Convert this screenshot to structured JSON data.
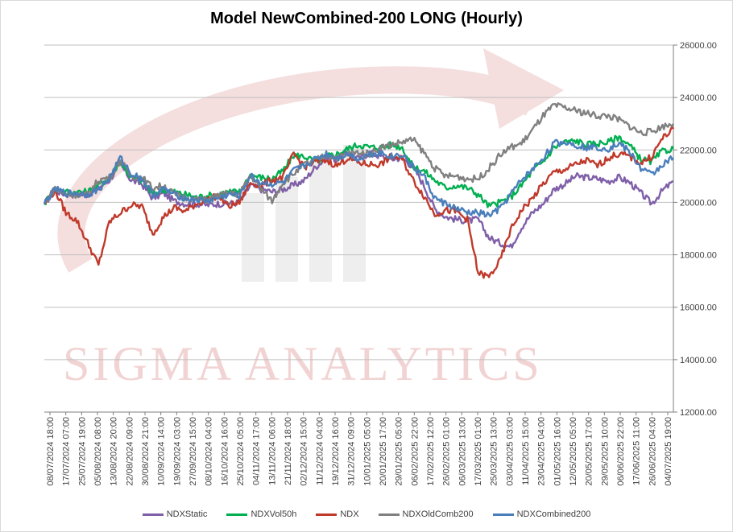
{
  "chart_data": {
    "type": "line",
    "title": "Model NewCombined-200 LONG (Hourly)",
    "watermark": "SIGMA ANALYTICS",
    "xlabel": "",
    "ylabel": "",
    "ylim": [
      12000,
      26000
    ],
    "y_ticks": [
      "12000.00",
      "14000.00",
      "16000.00",
      "18000.00",
      "20000.00",
      "22000.00",
      "24000.00",
      "26000.00"
    ],
    "y_axis_side": "right",
    "grid": true,
    "legend_position": "bottom",
    "x_tick_labels": [
      "08/07/2024 18:00",
      "17/07/2024 07:00",
      "25/07/2024 19:00",
      "05/08/2024 08:00",
      "13/08/2024 20:00",
      "22/08/2024 09:00",
      "30/08/2024 21:00",
      "10/09/2024 14:00",
      "19/09/2024 03:00",
      "27/09/2024 15:00",
      "08/10/2024 04:00",
      "16/10/2024 16:00",
      "25/10/2024 05:00",
      "04/11/2024 17:00",
      "13/11/2024 06:00",
      "21/11/2024 18:00",
      "02/12/2024 15:00",
      "11/12/2024 04:00",
      "19/12/2024 16:00",
      "31/12/2024 09:00",
      "10/01/2025 05:00",
      "20/01/2025 17:00",
      "29/01/2025 05:00",
      "06/02/2025 22:00",
      "17/02/2025 12:00",
      "26/02/2025 01:00",
      "06/03/2025 13:00",
      "17/03/2025 01:00",
      "25/03/2025 13:00",
      "03/04/2025 03:00",
      "11/04/2025 15:00",
      "23/04/2025 04:00",
      "01/05/2025 16:00",
      "12/05/2025 05:00",
      "20/05/2025 17:00",
      "29/05/2025 10:00",
      "06/06/2025 22:00",
      "17/06/2025 11:00",
      "26/06/2025 04:00",
      "04/07/2025 19:00"
    ],
    "series": [
      {
        "name": "NDXStatic",
        "color": "#7f5fa8",
        "values": [
          19950,
          20450,
          20300,
          20300,
          20300,
          20550,
          20850,
          21450,
          20850,
          20700,
          20150,
          20350,
          20050,
          19950,
          19950,
          19900,
          19950,
          19950,
          20000,
          20650,
          20500,
          20400,
          20500,
          20650,
          20850,
          21350,
          21700,
          21650,
          21900,
          21650,
          21900,
          21750,
          21650,
          21700,
          21350,
          20650,
          19750,
          19450,
          19350,
          19300,
          19350,
          18650,
          18450,
          18300,
          19050,
          19600,
          19950,
          20500,
          20700,
          21000,
          20950,
          20900,
          20800,
          20950,
          20750,
          20350,
          19950,
          20450,
          20800
        ]
      },
      {
        "name": "NDXVol50h",
        "color": "#00b050",
        "values": [
          19950,
          20550,
          20400,
          20400,
          20400,
          20650,
          20950,
          21550,
          20950,
          20850,
          20300,
          20500,
          20400,
          20300,
          20200,
          20250,
          20300,
          20400,
          20400,
          21050,
          20950,
          20900,
          21200,
          21800,
          21750,
          21550,
          21750,
          21850,
          22050,
          22200,
          22100,
          22100,
          22200,
          22100,
          21350,
          21200,
          20850,
          20550,
          20650,
          20550,
          20300,
          19850,
          20000,
          20200,
          20650,
          21200,
          21550,
          22100,
          22300,
          22350,
          22200,
          22250,
          22300,
          22500,
          22150,
          21650,
          21550,
          21950,
          22050
        ]
      },
      {
        "name": "NDX",
        "color": "#c0392b",
        "values": [
          19950,
          20450,
          19600,
          19300,
          18450,
          17600,
          19250,
          19600,
          19900,
          19850,
          18800,
          19450,
          19800,
          19650,
          19950,
          20100,
          20250,
          19850,
          20000,
          20750,
          20650,
          20850,
          20950,
          21850,
          21350,
          21550,
          21600,
          21400,
          21700,
          21500,
          21450,
          21450,
          21750,
          21650,
          20850,
          20250,
          19550,
          19700,
          19650,
          19350,
          17300,
          17150,
          17750,
          18950,
          19700,
          20150,
          20700,
          21150,
          21250,
          21450,
          21600,
          21400,
          21700,
          21850,
          21750,
          21500,
          21750,
          22450,
          22800
        ]
      },
      {
        "name": "NDXOldComb200",
        "color": "#808080",
        "values": [
          19950,
          20550,
          20300,
          20300,
          20300,
          20850,
          20950,
          21600,
          21000,
          20950,
          20550,
          20650,
          20300,
          20200,
          20100,
          20100,
          20250,
          20350,
          20300,
          21050,
          20500,
          20050,
          20750,
          21100,
          21450,
          21600,
          21800,
          21700,
          21850,
          21900,
          21850,
          22100,
          22200,
          22300,
          22400,
          21900,
          21300,
          21000,
          21000,
          20900,
          20900,
          21300,
          21800,
          22100,
          22250,
          22750,
          23300,
          23700,
          23600,
          23500,
          23400,
          23300,
          23300,
          23150,
          22900,
          22650,
          22700,
          22900,
          23000
        ]
      },
      {
        "name": "NDXCombined200",
        "color": "#4a7ebb",
        "values": [
          19950,
          20500,
          20350,
          20350,
          20300,
          20500,
          20900,
          21700,
          21100,
          20900,
          20300,
          20500,
          20300,
          20150,
          20100,
          20050,
          20150,
          20300,
          20250,
          21000,
          20750,
          20700,
          20750,
          21200,
          21400,
          21650,
          21850,
          21700,
          21850,
          21650,
          21850,
          21900,
          21750,
          21850,
          21350,
          21000,
          20150,
          19950,
          19750,
          19600,
          19600,
          19500,
          19750,
          20300,
          20850,
          21250,
          21700,
          22250,
          22300,
          22200,
          22100,
          22100,
          22050,
          22250,
          21900,
          21300,
          21050,
          21450,
          21700
        ]
      }
    ]
  }
}
